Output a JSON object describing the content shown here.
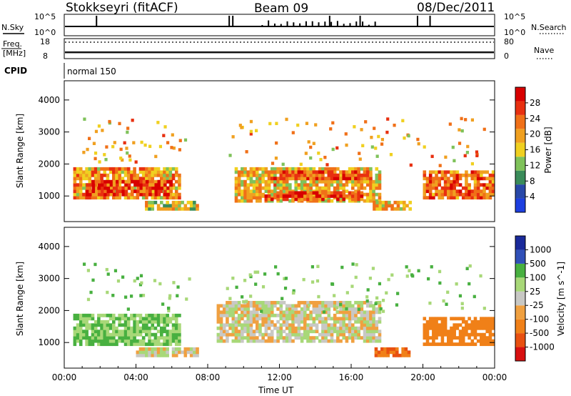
{
  "header": {
    "station": "Stokkseyri (fitACF)",
    "beam": "Beam 09",
    "date": "08/Dec/2011"
  },
  "side_labels": {
    "nsky": "N.Sky",
    "freq": "Freq.",
    "freq_unit": "[MHz]",
    "cpid": "CPID",
    "nsearch": "N.Search",
    "nave": "Nave"
  },
  "cpid_text": "normal 150",
  "nsky_ticks": {
    "top": "10^5",
    "bottom": "10^0"
  },
  "freq_ticks": {
    "top": "18",
    "bottom": "8"
  },
  "nave_ticks": {
    "top": "80",
    "bottom": "0"
  },
  "colors": {
    "power": [
      "#1d3fe0",
      "#2848a8",
      "#3a8c5a",
      "#7fc25a",
      "#f0d020",
      "#f0a020",
      "#f07018",
      "#e83010",
      "#d80000"
    ],
    "velocity": [
      "#d81010",
      "#e85010",
      "#f08018",
      "#f0a040",
      "#c8c8c4",
      "#a8d878",
      "#48b040",
      "#3050b8",
      "#1a2a9a"
    ]
  },
  "chart_data": [
    {
      "type": "heatmap",
      "title": "",
      "ylabel": "Slant Range [km]",
      "xlabel": "",
      "x_range": [
        "00:00",
        "24:00"
      ],
      "ylim": [
        200,
        4600
      ],
      "y_ticks": [
        1000,
        2000,
        3000,
        4000
      ],
      "colorbar": {
        "label": "Power [dB]",
        "ticks": [
          4,
          8,
          12,
          16,
          20,
          24,
          28
        ],
        "range": [
          0,
          32
        ]
      },
      "echo_regions": [
        {
          "t0": 0.5,
          "t1": 6.5,
          "r0": 900,
          "r1": 1850,
          "value": 20
        },
        {
          "t0": 1.2,
          "t1": 6.0,
          "r0": 1000,
          "r1": 1500,
          "value": 27
        },
        {
          "t0": 4.5,
          "t1": 7.5,
          "r0": 550,
          "r1": 800,
          "value": 16
        },
        {
          "t0": 9.5,
          "t1": 17.5,
          "r0": 800,
          "r1": 1900,
          "value": 18
        },
        {
          "t0": 11.0,
          "t1": 16.5,
          "r0": 850,
          "r1": 1100,
          "value": 26
        },
        {
          "t0": 11.5,
          "t1": 17.0,
          "r0": 1500,
          "r1": 1800,
          "value": 25
        },
        {
          "t0": 17.2,
          "t1": 19.3,
          "r0": 550,
          "r1": 800,
          "value": 18
        },
        {
          "t0": 20.0,
          "t1": 24.0,
          "r0": 900,
          "r1": 1750,
          "value": 24
        }
      ]
    },
    {
      "type": "heatmap",
      "title": "",
      "ylabel": "Slant Range [km]",
      "xlabel": "Time UT",
      "x_ticks": [
        "00:00",
        "04:00",
        "08:00",
        "12:00",
        "16:00",
        "20:00",
        "00:00"
      ],
      "ylim": [
        200,
        4600
      ],
      "y_ticks": [
        1000,
        2000,
        3000,
        4000
      ],
      "colorbar": {
        "label": "Velocity [m s^-1]",
        "ticks": [
          "1000",
          "500",
          "100",
          "25",
          "-25",
          "-100",
          "-500",
          "-1000"
        ]
      },
      "echo_regions": [
        {
          "t0": 0.5,
          "t1": 6.5,
          "r0": 900,
          "r1": 1850,
          "value": 100
        },
        {
          "t0": 4.0,
          "t1": 7.5,
          "r0": 550,
          "r1": 800,
          "value": 0
        },
        {
          "t0": 8.5,
          "t1": 17.5,
          "r0": 1000,
          "r1": 2300,
          "value": 0
        },
        {
          "t0": 17.3,
          "t1": 19.3,
          "r0": 550,
          "r1": 850,
          "value": -500
        },
        {
          "t0": 20.0,
          "t1": 24.0,
          "r0": 900,
          "r1": 1800,
          "value": -400
        }
      ]
    }
  ]
}
